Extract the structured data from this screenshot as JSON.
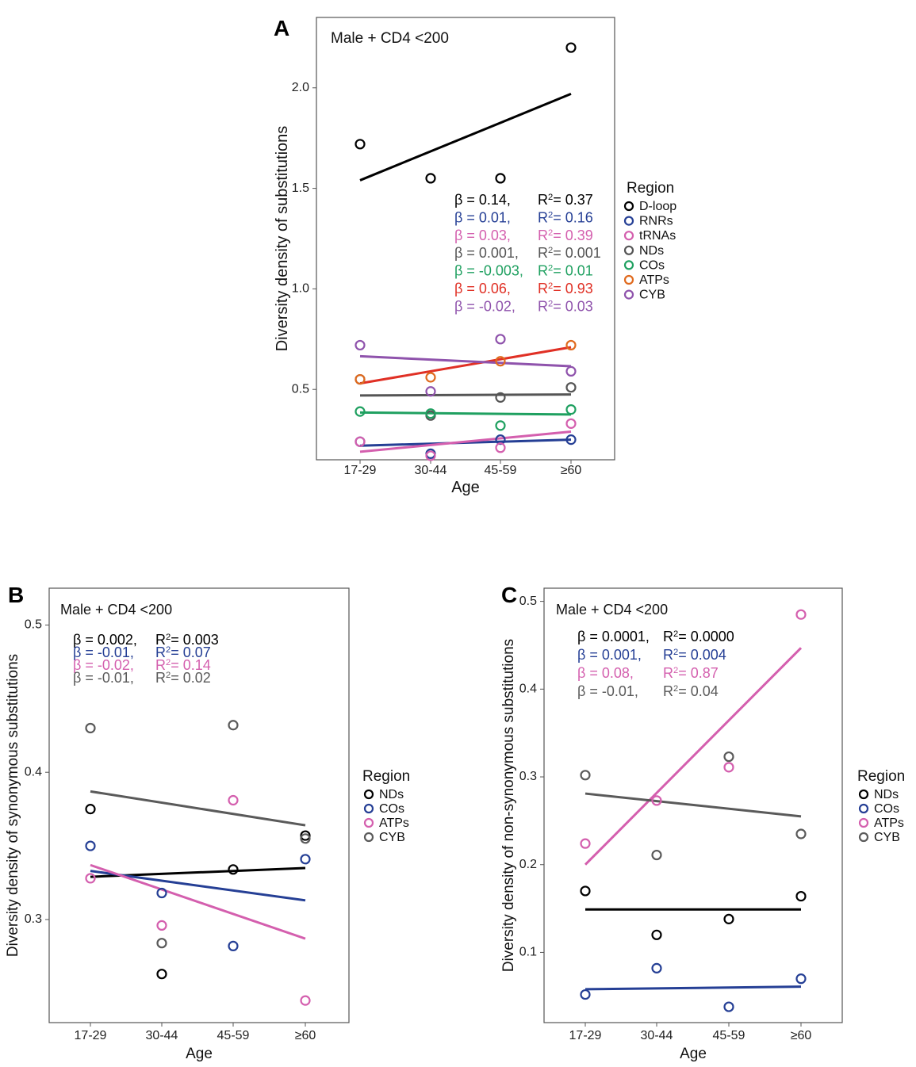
{
  "colors": {
    "D-loop": "#000000",
    "RNRs": "#253f95",
    "tRNAs": "#d45fae",
    "NDs": "#000000",
    "COs": "#253f95",
    "ATPs": "#d45fae",
    "CYB": "#5a5a5a",
    "NDs_A": "#555555",
    "COs_A": "#1fa060",
    "ATPs_A": "#e06a1e",
    "CYB_A": "#8f53ac",
    "line_ATPs_A": "#e03025"
  },
  "chart_data": [
    {
      "id": "A",
      "type": "scatter",
      "panel_label": "A",
      "annotation": "Male + CD4 <200",
      "xlabel": "Age",
      "ylabel": "Diversity density of substitutions",
      "categories": [
        "17-29",
        "30-44",
        "45-59",
        "≥60"
      ],
      "ylim": [
        0.15,
        2.35
      ],
      "yticks": [
        "0.5",
        "1.0",
        "1.5",
        "2.0"
      ],
      "legend_title": "Region",
      "legend": [
        "D-loop",
        "RNRs",
        "tRNAs",
        "NDs",
        "COs",
        "ATPs",
        "CYB"
      ],
      "series": [
        {
          "name": "D-loop",
          "color": "#000000",
          "line_color": "#000000",
          "values": [
            1.72,
            1.55,
            1.55,
            2.2
          ],
          "fit": [
            1.54,
            1.97
          ],
          "stats": {
            "beta": "β = 0.14,",
            "r2": "= 0.37"
          }
        },
        {
          "name": "RNRs",
          "color": "#253f95",
          "line_color": "#253f95",
          "values": [
            0.24,
            0.18,
            0.25,
            0.25
          ],
          "fit": [
            0.22,
            0.25
          ],
          "stats": {
            "beta": "β = 0.01,",
            "r2": "= 0.16"
          }
        },
        {
          "name": "tRNAs",
          "color": "#d45fae",
          "line_color": "#d45fae",
          "values": [
            0.24,
            0.17,
            0.21,
            0.33
          ],
          "fit": [
            0.19,
            0.29
          ],
          "stats": {
            "beta": "β = 0.03,",
            "r2": "= 0.39"
          }
        },
        {
          "name": "NDs",
          "color": "#555555",
          "line_color": "#555555",
          "values": [
            0.55,
            0.37,
            0.46,
            0.51
          ],
          "fit": [
            0.47,
            0.475
          ],
          "stats": {
            "beta": "β = 0.001,",
            "r2": "= 0.001"
          }
        },
        {
          "name": "COs",
          "color": "#1fa060",
          "line_color": "#1fa060",
          "values": [
            0.39,
            0.38,
            0.32,
            0.4
          ],
          "fit": [
            0.385,
            0.375
          ],
          "stats": {
            "beta": "β = -0.003,",
            "r2": "= 0.01"
          }
        },
        {
          "name": "ATPs",
          "color": "#e06a1e",
          "line_color": "#e03025",
          "values": [
            0.55,
            0.56,
            0.64,
            0.72
          ],
          "fit": [
            0.53,
            0.71
          ],
          "stats": {
            "beta": "β = 0.06,",
            "r2": "= 0.93"
          }
        },
        {
          "name": "CYB",
          "color": "#8f53ac",
          "line_color": "#8f53ac",
          "values": [
            0.72,
            0.49,
            0.75,
            0.59
          ],
          "fit": [
            0.665,
            0.615
          ],
          "stats": {
            "beta": "β = -0.02,",
            "r2": "= 0.03"
          }
        }
      ]
    },
    {
      "id": "B",
      "type": "scatter",
      "panel_label": "B",
      "annotation": "Male + CD4 <200",
      "xlabel": "Age",
      "ylabel": "Diversity density of synonymous substitutions",
      "categories": [
        "17-29",
        "30-44",
        "45-59",
        "≥60"
      ],
      "ylim": [
        0.23,
        0.525
      ],
      "yticks": [
        "0.3",
        "0.4",
        "0.5"
      ],
      "legend_title": "Region",
      "legend": [
        "NDs",
        "COs",
        "ATPs",
        "CYB"
      ],
      "series": [
        {
          "name": "NDs",
          "color": "#000000",
          "line_color": "#000000",
          "values": [
            0.375,
            0.263,
            0.334,
            0.357
          ],
          "fit": [
            0.329,
            0.335
          ],
          "stats": {
            "beta": "β = 0.002,",
            "r2": "= 0.003"
          }
        },
        {
          "name": "COs",
          "color": "#253f95",
          "line_color": "#253f95",
          "values": [
            0.35,
            0.318,
            0.282,
            0.341
          ],
          "fit": [
            0.333,
            0.313
          ],
          "stats": {
            "beta": "β = -0.01,",
            "r2": "= 0.07"
          }
        },
        {
          "name": "ATPs",
          "color": "#d45fae",
          "line_color": "#d45fae",
          "values": [
            0.328,
            0.296,
            0.381,
            0.245
          ],
          "fit": [
            0.337,
            0.287
          ],
          "stats": {
            "beta": "β = -0.02,",
            "r2": "= 0.14"
          }
        },
        {
          "name": "CYB",
          "color": "#5a5a5a",
          "line_color": "#5a5a5a",
          "values": [
            0.43,
            0.284,
            0.432,
            0.355
          ],
          "fit": [
            0.387,
            0.364
          ],
          "stats": {
            "beta": "β = -0.01,",
            "r2": "= 0.02"
          }
        }
      ]
    },
    {
      "id": "C",
      "type": "scatter",
      "panel_label": "C",
      "annotation": "Male + CD4 <200",
      "xlabel": "Age",
      "ylabel": "Diversity density of non-synonymous substitutions",
      "categories": [
        "17-29",
        "30-44",
        "45-59",
        "≥60"
      ],
      "ylim": [
        0.02,
        0.515
      ],
      "yticks": [
        "0.1",
        "0.2",
        "0.3",
        "0.4",
        "0.5"
      ],
      "legend_title": "Region",
      "legend": [
        "NDs",
        "COs",
        "ATPs",
        "CYB"
      ],
      "series": [
        {
          "name": "NDs",
          "color": "#000000",
          "line_color": "#000000",
          "values": [
            0.17,
            0.12,
            0.138,
            0.164
          ],
          "fit": [
            0.149,
            0.149
          ],
          "stats": {
            "beta": "β = 0.0001,",
            "r2": "= 0.0000"
          }
        },
        {
          "name": "COs",
          "color": "#253f95",
          "line_color": "#253f95",
          "values": [
            0.052,
            0.082,
            0.038,
            0.07
          ],
          "fit": [
            0.058,
            0.061
          ],
          "stats": {
            "beta": "β = 0.001,",
            "r2": "= 0.004"
          }
        },
        {
          "name": "ATPs",
          "color": "#d45fae",
          "line_color": "#d45fae",
          "values": [
            0.224,
            0.273,
            0.311,
            0.485
          ],
          "fit": [
            0.2,
            0.447
          ],
          "stats": {
            "beta": "β = 0.08,",
            "r2": "= 0.87"
          }
        },
        {
          "name": "CYB",
          "color": "#5a5a5a",
          "line_color": "#5a5a5a",
          "values": [
            0.302,
            0.211,
            0.323,
            0.235
          ],
          "fit": [
            0.281,
            0.255
          ],
          "stats": {
            "beta": "β = -0.01,",
            "r2": "= 0.04"
          }
        }
      ]
    }
  ]
}
